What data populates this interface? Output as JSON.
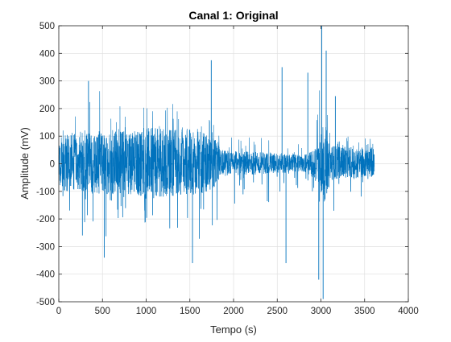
{
  "chart_data": {
    "type": "line",
    "title": "Canal 1: Original",
    "xlabel": "Tempo (s)",
    "ylabel": "Amplitude (mV)",
    "xlim": [
      0,
      4000
    ],
    "ylim": [
      -500,
      500
    ],
    "xticks": [
      0,
      500,
      1000,
      1500,
      2000,
      2500,
      3000,
      3500,
      4000
    ],
    "yticks": [
      -500,
      -400,
      -300,
      -200,
      -100,
      0,
      100,
      200,
      300,
      400,
      500
    ],
    "grid": true,
    "line_color": "#0072BD",
    "series": [
      {
        "name": "",
        "x_range": [
          0,
          3610
        ],
        "envelope": [
          {
            "x": 0,
            "dense_low": -100,
            "dense_high": 100,
            "min": -260,
            "max": 240
          },
          {
            "x": 200,
            "dense_low": -100,
            "dense_high": 110,
            "min": -250,
            "max": 230
          },
          {
            "x": 400,
            "dense_low": -110,
            "dense_high": 120,
            "min": -340,
            "max": 300
          },
          {
            "x": 600,
            "dense_low": -110,
            "dense_high": 120,
            "min": -240,
            "max": 220
          },
          {
            "x": 800,
            "dense_low": -110,
            "dense_high": 125,
            "min": -240,
            "max": 230
          },
          {
            "x": 1000,
            "dense_low": -120,
            "dense_high": 130,
            "min": -220,
            "max": 240
          },
          {
            "x": 1200,
            "dense_low": -120,
            "dense_high": 130,
            "min": -250,
            "max": 230
          },
          {
            "x": 1400,
            "dense_low": -115,
            "dense_high": 130,
            "min": -240,
            "max": 230
          },
          {
            "x": 1600,
            "dense_low": -110,
            "dense_high": 120,
            "min": -280,
            "max": 230
          },
          {
            "x": 1790,
            "dense_low": -90,
            "dense_high": 90,
            "min": -240,
            "max": 170
          },
          {
            "x": 1850,
            "dense_low": -45,
            "dense_high": 50,
            "min": -180,
            "max": 110
          },
          {
            "x": 2200,
            "dense_low": -40,
            "dense_high": 45,
            "min": -140,
            "max": 120
          },
          {
            "x": 2500,
            "dense_low": -35,
            "dense_high": 40,
            "min": -180,
            "max": 100
          },
          {
            "x": 2800,
            "dense_low": -30,
            "dense_high": 30,
            "min": -160,
            "max": 100
          },
          {
            "x": 2950,
            "dense_low": -60,
            "dense_high": 60,
            "min": -200,
            "max": 160
          },
          {
            "x": 3030,
            "dense_low": -150,
            "dense_high": 170,
            "min": -480,
            "max": 500
          },
          {
            "x": 3100,
            "dense_low": -60,
            "dense_high": 70,
            "min": -320,
            "max": 240
          },
          {
            "x": 3300,
            "dense_low": -50,
            "dense_high": 60,
            "min": -140,
            "max": 100
          },
          {
            "x": 3610,
            "dense_low": -55,
            "dense_high": 60,
            "min": -120,
            "max": 100
          }
        ],
        "spikes": [
          {
            "x": 340,
            "y": 300
          },
          {
            "x": 520,
            "y": -340
          },
          {
            "x": 1530,
            "y": -360
          },
          {
            "x": 1745,
            "y": 375
          },
          {
            "x": 2555,
            "y": 350
          },
          {
            "x": 2600,
            "y": -360
          },
          {
            "x": 2850,
            "y": 330
          },
          {
            "x": 2975,
            "y": -420
          },
          {
            "x": 3010,
            "y": 500
          },
          {
            "x": 3025,
            "y": -490
          },
          {
            "x": 3060,
            "y": 410
          },
          {
            "x": 3165,
            "y": 245
          }
        ]
      }
    ]
  }
}
